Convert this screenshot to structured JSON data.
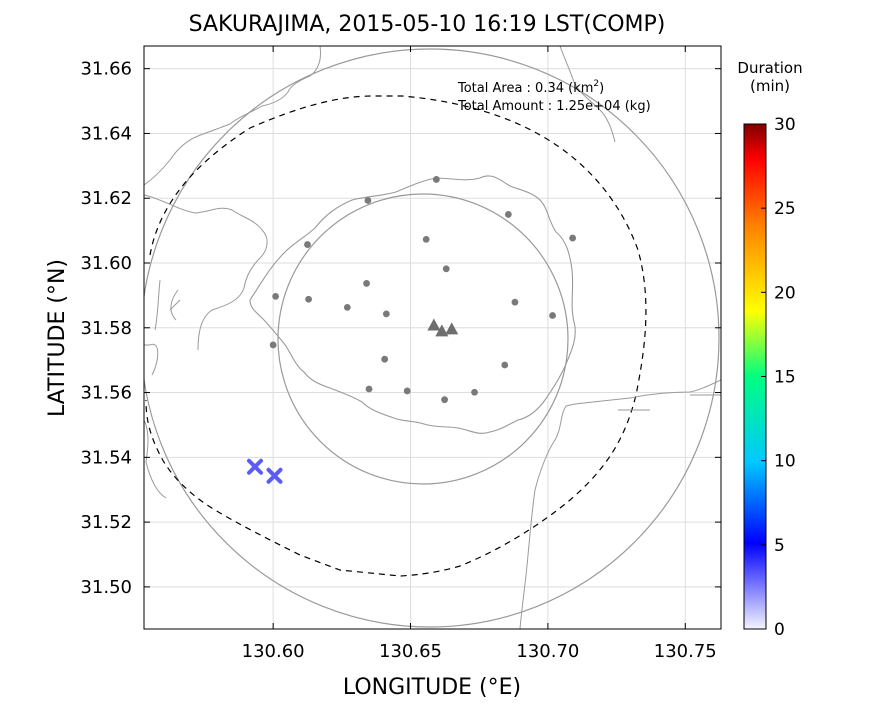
{
  "chart_data": {
    "type": "scatter",
    "title": "SAKURAJIMA, 2015-05-10 16:19 LST(COMP)",
    "xlabel": "LONGITUDE (°E)",
    "ylabel": "LATITUDE (°N)",
    "xlim": [
      130.553,
      130.763
    ],
    "ylim": [
      31.487,
      31.667
    ],
    "xticks": [
      130.6,
      130.65,
      130.7,
      130.75
    ],
    "xtick_labels": [
      "130.60",
      "130.65",
      "130.70",
      "130.75"
    ],
    "yticks": [
      31.5,
      31.52,
      31.54,
      31.56,
      31.58,
      31.6,
      31.62,
      31.64,
      31.66
    ],
    "ytick_labels": [
      "31.50",
      "31.52",
      "31.54",
      "31.56",
      "31.58",
      "31.60",
      "31.62",
      "31.64",
      "31.66"
    ],
    "grid": true,
    "annotations": {
      "area_label": "Total Area   : 0.34 (km",
      "area_sup": "2",
      "area_close": ")",
      "amount_label": "Total Amount : 1.25e+04 (kg)"
    },
    "colorbar": {
      "title_line1": "Duration",
      "title_line2": "(min)",
      "range": [
        0,
        30
      ],
      "ticks": [
        0,
        5,
        10,
        15,
        20,
        25,
        30
      ],
      "tick_labels": [
        "0",
        "5",
        "10",
        "15",
        "20",
        "25",
        "30"
      ],
      "colors": [
        "#f0f0ff",
        "#0000ff",
        "#00c8ff",
        "#00ff80",
        "#ffff00",
        "#ff8000",
        "#ff0000",
        "#800000"
      ]
    },
    "vents": [
      {
        "lon": 130.6585,
        "lat": 31.5807
      },
      {
        "lon": 130.6614,
        "lat": 31.5789
      },
      {
        "lon": 130.665,
        "lat": 31.5795
      }
    ],
    "stations": [
      {
        "lon": 130.6594,
        "lat": 31.6258
      },
      {
        "lon": 130.6345,
        "lat": 31.6193
      },
      {
        "lon": 130.6856,
        "lat": 31.615
      },
      {
        "lon": 130.6557,
        "lat": 31.6073
      },
      {
        "lon": 130.709,
        "lat": 31.6077
      },
      {
        "lon": 130.6125,
        "lat": 31.6057
      },
      {
        "lon": 130.663,
        "lat": 31.5982
      },
      {
        "lon": 130.6009,
        "lat": 31.5897
      },
      {
        "lon": 130.6129,
        "lat": 31.5888
      },
      {
        "lon": 130.634,
        "lat": 31.5937
      },
      {
        "lon": 130.688,
        "lat": 31.5879
      },
      {
        "lon": 130.627,
        "lat": 31.5863
      },
      {
        "lon": 130.6412,
        "lat": 31.5843
      },
      {
        "lon": 130.7017,
        "lat": 31.5838
      },
      {
        "lon": 130.6,
        "lat": 31.5747
      },
      {
        "lon": 130.6406,
        "lat": 31.5703
      },
      {
        "lon": 130.6843,
        "lat": 31.5685
      },
      {
        "lon": 130.6349,
        "lat": 31.5611
      },
      {
        "lon": 130.6488,
        "lat": 31.5605
      },
      {
        "lon": 130.6733,
        "lat": 31.5601
      },
      {
        "lon": 130.6624,
        "lat": 31.5578
      }
    ],
    "deposits": [
      {
        "lon": 130.5934,
        "lat": 31.5371,
        "duration_min": 4
      },
      {
        "lon": 130.6005,
        "lat": 31.5343,
        "duration_min": 4
      }
    ]
  }
}
